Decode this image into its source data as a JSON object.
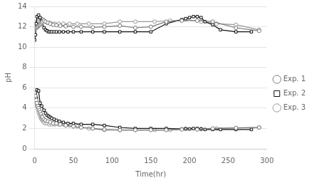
{
  "chart_data": {
    "type": "line",
    "xlabel": "Time(hr)",
    "ylabel": "pH",
    "xlim": [
      0,
      300
    ],
    "ylim": [
      0,
      14
    ],
    "xticks": [
      0,
      50,
      100,
      150,
      200,
      250,
      300
    ],
    "yticks": [
      0,
      2,
      4,
      6,
      8,
      10,
      12,
      14
    ],
    "grid": "y",
    "legend": "right",
    "series": [
      {
        "name": "Exp. 1",
        "color": "#777777",
        "marker": "circle",
        "x": [
          0,
          1,
          2,
          3,
          4,
          5,
          6,
          7,
          8,
          9,
          10,
          12,
          14,
          17,
          20,
          24,
          28,
          33,
          40,
          50,
          60,
          75,
          90,
          110,
          130,
          150,
          170,
          190,
          210,
          230,
          260,
          290
        ],
        "values": [
          5.5,
          5.2,
          4.8,
          4.5,
          4.2,
          4.0,
          3.8,
          3.6,
          3.4,
          3.2,
          3.1,
          2.9,
          2.8,
          2.7,
          2.6,
          2.5,
          2.5,
          2.4,
          2.3,
          2.2,
          2.1,
          2.0,
          1.9,
          1.85,
          1.85,
          1.85,
          1.85,
          1.9,
          1.9,
          2.0,
          2.05,
          2.1
        ]
      },
      {
        "name": "Exp. 1",
        "color": "#777777",
        "marker": "circle",
        "x": [
          0,
          1,
          2,
          3,
          4,
          5,
          6,
          7,
          8,
          9,
          10,
          12,
          14,
          17,
          20,
          24,
          28,
          33,
          40,
          50,
          60,
          75,
          90,
          110,
          130,
          150,
          170,
          190,
          210,
          230,
          260,
          290
        ],
        "values": [
          11.8,
          11.85,
          11.9,
          11.95,
          12.0,
          12.1,
          12.15,
          12.2,
          12.3,
          12.4,
          12.5,
          12.6,
          12.5,
          12.4,
          12.3,
          12.2,
          12.15,
          12.1,
          12.05,
          12.0,
          12.0,
          11.95,
          12.0,
          12.1,
          11.9,
          12.0,
          12.5,
          12.6,
          12.6,
          12.5,
          11.9,
          11.6
        ]
      },
      {
        "name": "Exp. 2",
        "color": "#111111",
        "marker": "square",
        "x": [
          0,
          1,
          2,
          3,
          5,
          7,
          9,
          12,
          14,
          16,
          18,
          20,
          22,
          25,
          28,
          32,
          37,
          43,
          50,
          60,
          75,
          90,
          110,
          130,
          150,
          170,
          190,
          195,
          200,
          205,
          210,
          215,
          220,
          230,
          240,
          260,
          280
        ],
        "values": [
          5.5,
          5.2,
          5.0,
          5.8,
          5.7,
          4.5,
          4.2,
          3.8,
          3.5,
          3.3,
          3.2,
          3.1,
          3.0,
          2.9,
          2.8,
          2.7,
          2.6,
          2.5,
          2.5,
          2.4,
          2.4,
          2.3,
          2.1,
          2.0,
          2.0,
          2.0,
          1.95,
          1.95,
          1.95,
          2.0,
          2.0,
          1.95,
          1.9,
          1.9,
          1.9,
          1.9,
          1.9
        ]
      },
      {
        "name": "Exp. 2",
        "color": "#111111",
        "marker": "square",
        "x": [
          0,
          1,
          2,
          3,
          5,
          7,
          9,
          12,
          14,
          16,
          18,
          20,
          22,
          25,
          28,
          32,
          37,
          43,
          50,
          60,
          75,
          90,
          110,
          130,
          150,
          170,
          190,
          195,
          200,
          205,
          210,
          215,
          220,
          230,
          240,
          260,
          280
        ],
        "values": [
          10.7,
          11.2,
          12.3,
          13.0,
          13.15,
          12.9,
          12.5,
          11.9,
          11.7,
          11.6,
          11.5,
          11.5,
          11.5,
          11.5,
          11.5,
          11.5,
          11.5,
          11.5,
          11.5,
          11.5,
          11.5,
          11.5,
          11.5,
          11.5,
          11.5,
          12.3,
          12.7,
          12.8,
          12.9,
          13.0,
          13.0,
          12.9,
          12.5,
          12.2,
          11.7,
          11.5,
          11.5
        ]
      },
      {
        "name": "Exp. 3",
        "color": "#999999",
        "marker": "circle",
        "x": [
          0,
          1,
          2,
          3,
          4,
          5,
          6,
          7,
          8,
          9,
          10,
          11,
          12,
          14,
          16,
          19,
          22,
          26,
          31,
          37,
          45,
          55,
          70,
          90,
          110,
          130,
          155,
          175,
          195,
          215,
          235,
          260,
          290
        ],
        "values": [
          5.4,
          5.0,
          4.5,
          4.2,
          3.9,
          3.6,
          3.4,
          3.2,
          3.0,
          2.9,
          2.8,
          2.7,
          2.6,
          2.5,
          2.5,
          2.4,
          2.4,
          2.4,
          2.4,
          2.4,
          2.3,
          2.2,
          2.0,
          1.85,
          1.85,
          1.85,
          1.85,
          1.85,
          2.0,
          1.95,
          2.0,
          2.05,
          2.1
        ]
      },
      {
        "name": "Exp. 3",
        "color": "#999999",
        "marker": "circle",
        "x": [
          0,
          1,
          2,
          3,
          4,
          5,
          6,
          7,
          8,
          9,
          10,
          11,
          12,
          14,
          16,
          19,
          22,
          26,
          31,
          37,
          45,
          55,
          70,
          90,
          110,
          130,
          155,
          175,
          195,
          215,
          235,
          260,
          290
        ],
        "values": [
          11.8,
          12.0,
          12.3,
          12.5,
          12.6,
          12.7,
          12.8,
          12.85,
          12.8,
          12.7,
          12.7,
          12.7,
          12.6,
          12.5,
          12.4,
          12.4,
          12.3,
          12.3,
          12.3,
          12.3,
          12.3,
          12.3,
          12.3,
          12.3,
          12.5,
          12.5,
          12.5,
          12.6,
          12.7,
          12.5,
          12.3,
          12.2,
          11.7
        ]
      }
    ]
  }
}
